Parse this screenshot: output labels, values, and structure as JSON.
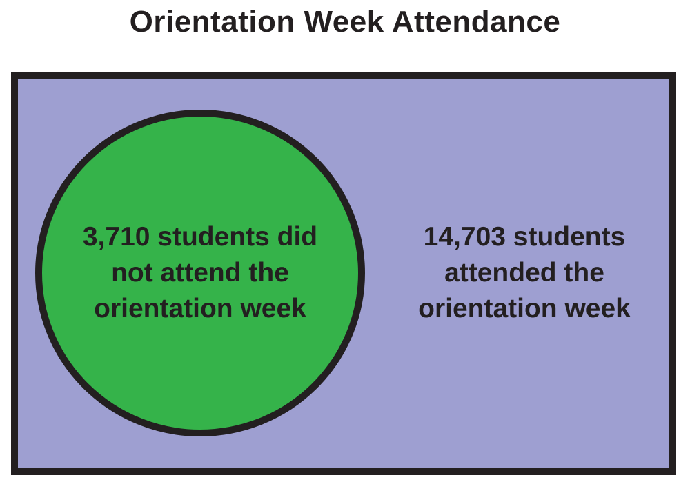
{
  "title": "Orientation Week Attendance",
  "regions": {
    "inside": {
      "text": "3,710 students did\nnot attend the\norientation week",
      "count": 3710,
      "fill": "#35b34a"
    },
    "outside": {
      "text": "14,703 students\nattended the\norientation week",
      "count": 14703,
      "fill": "#9e9fd1"
    }
  },
  "colors": {
    "stroke": "#231f20",
    "text": "#231f20"
  }
}
